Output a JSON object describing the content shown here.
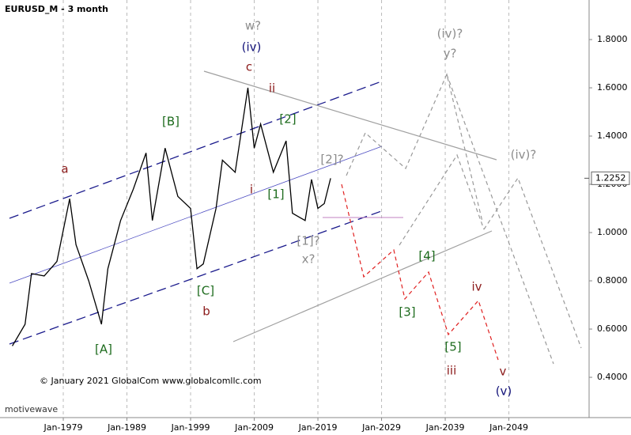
{
  "chart_data": {
    "type": "line",
    "title": "EURUSD_M - 3 month",
    "copyright": "© January 2021 GlobalCom www.globalcomllc.com",
    "watermark": "motivewave",
    "color": "#000000",
    "x": [
      1971,
      1973,
      1974,
      1976,
      1978,
      1980,
      1981,
      1983,
      1985,
      1986,
      1988,
      1990,
      1992,
      1993,
      1995,
      1997,
      1999,
      2000,
      2001,
      2003,
      2004,
      2006,
      2008,
      2009,
      2010,
      2012,
      2014,
      2015,
      2017,
      2018,
      2019,
      2020,
      2021
    ],
    "values": [
      0.53,
      0.62,
      0.83,
      0.82,
      0.88,
      1.14,
      0.95,
      0.8,
      0.62,
      0.85,
      1.05,
      1.18,
      1.33,
      1.05,
      1.35,
      1.15,
      1.1,
      0.85,
      0.87,
      1.1,
      1.3,
      1.25,
      1.6,
      1.35,
      1.45,
      1.25,
      1.38,
      1.08,
      1.05,
      1.22,
      1.1,
      1.12,
      1.2252
    ],
    "last_price": {
      "value": 1.2252,
      "label": "1.2252"
    },
    "xlim": [
      1969.06,
      2061.6
    ],
    "xticks": [
      {
        "value": 1979,
        "label": "Jan-1979"
      },
      {
        "value": 1989,
        "label": "Jan-1989"
      },
      {
        "value": 1999,
        "label": "Jan-1999"
      },
      {
        "value": 2009,
        "label": "Jan-2009"
      },
      {
        "value": 2019,
        "label": "Jan-2019"
      },
      {
        "value": 2029,
        "label": "Jan-2029"
      },
      {
        "value": 2039,
        "label": "Jan-2039"
      },
      {
        "value": 2049,
        "label": "Jan-2049"
      }
    ],
    "ylim": [
      0.233,
      1.964
    ],
    "yticks": [
      {
        "value": 0.4,
        "label": "0.4000"
      },
      {
        "value": 0.6,
        "label": "0.6000"
      },
      {
        "value": 0.8,
        "label": "0.8000"
      },
      {
        "value": 1.0,
        "label": "1.0000"
      },
      {
        "value": 1.2,
        "label": "1.2000"
      },
      {
        "value": 1.4,
        "label": "1.4000"
      },
      {
        "value": 1.6,
        "label": "1.6000"
      },
      {
        "value": 1.8,
        "label": "1.8000"
      }
    ],
    "grid": true,
    "annotations": [
      {
        "text": "w?",
        "color": "#8c8c8c"
      },
      {
        "text": "(iv)",
        "color": "#14147a"
      },
      {
        "text": "c",
        "color": "#8b1a1a"
      },
      {
        "text": "ii",
        "color": "#8b1a1a"
      },
      {
        "text": "[B]",
        "color": "#1d6b1d"
      },
      {
        "text": "[2]",
        "color": "#1d6b1d"
      },
      {
        "text": "[2]?",
        "color": "#8c8c8c"
      },
      {
        "text": "a",
        "color": "#8b1a1a"
      },
      {
        "text": "i",
        "color": "#8b1a1a"
      },
      {
        "text": "[1]",
        "color": "#1d6b1d"
      },
      {
        "text": "[1]?",
        "color": "#8c8c8c"
      },
      {
        "text": "x?",
        "color": "#8c8c8c"
      },
      {
        "text": "[C]",
        "color": "#1d6b1d"
      },
      {
        "text": "b",
        "color": "#8b1a1a"
      },
      {
        "text": "[A]",
        "color": "#1d6b1d"
      },
      {
        "text": "(iv)?",
        "color": "#8c8c8c"
      },
      {
        "text": "y?",
        "color": "#8c8c8c"
      },
      {
        "text": "(iv)?",
        "color": "#8c8c8c"
      },
      {
        "text": "[4]",
        "color": "#1d6b1d"
      },
      {
        "text": "[3]",
        "color": "#1d6b1d"
      },
      {
        "text": "iv",
        "color": "#8b1a1a"
      },
      {
        "text": "[5]",
        "color": "#1d6b1d"
      },
      {
        "text": "iii",
        "color": "#8b1a1a"
      },
      {
        "text": "v",
        "color": "#8b1a1a"
      },
      {
        "text": "(v)",
        "color": "#14147a"
      }
    ]
  }
}
